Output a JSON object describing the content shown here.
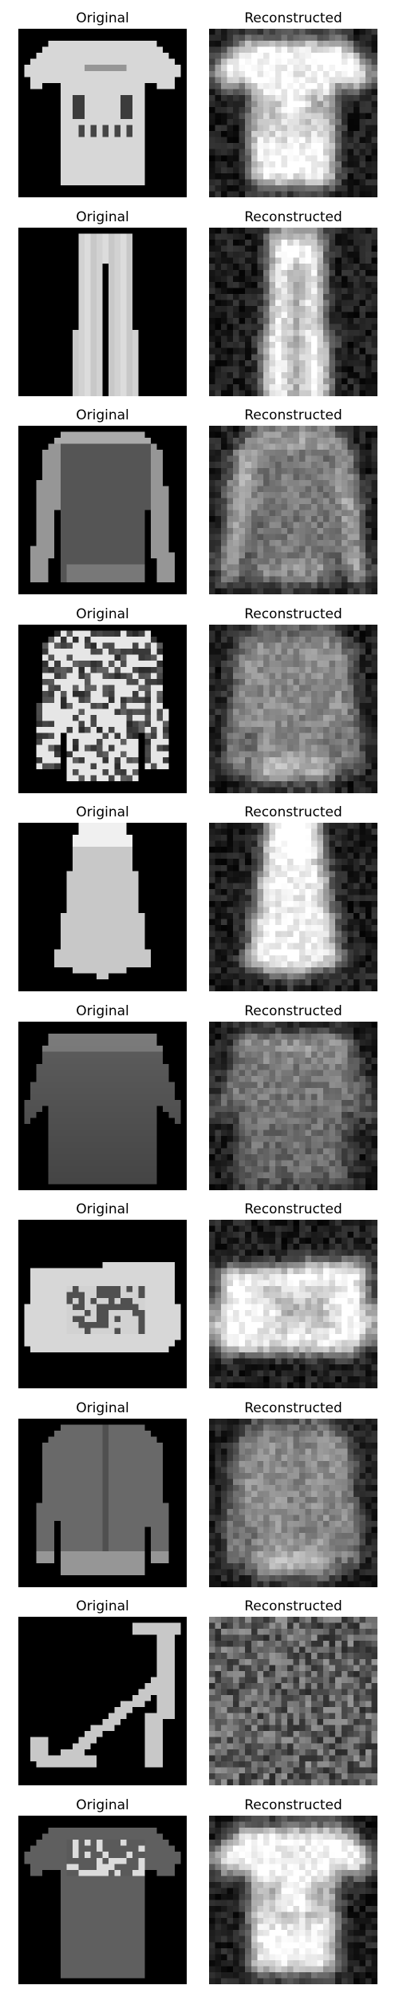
{
  "pairs": [
    {
      "item": "t-shirt",
      "original_title": "Original",
      "reconstructed_title": "Reconstructed"
    },
    {
      "item": "trouser",
      "original_title": "Original",
      "reconstructed_title": "Reconstructed"
    },
    {
      "item": "pullover",
      "original_title": "Original",
      "reconstructed_title": "Reconstructed"
    },
    {
      "item": "patterned-pullover",
      "original_title": "Original",
      "reconstructed_title": "Reconstructed"
    },
    {
      "item": "dress",
      "original_title": "Original",
      "reconstructed_title": "Reconstructed"
    },
    {
      "item": "shirt",
      "original_title": "Original",
      "reconstructed_title": "Reconstructed"
    },
    {
      "item": "bag",
      "original_title": "Original",
      "reconstructed_title": "Reconstructed"
    },
    {
      "item": "coat",
      "original_title": "Original",
      "reconstructed_title": "Reconstructed"
    },
    {
      "item": "sandal",
      "original_title": "Original",
      "reconstructed_title": "Reconstructed"
    },
    {
      "item": "printed-t-shirt",
      "original_title": "Original",
      "reconstructed_title": "Reconstructed"
    }
  ]
}
